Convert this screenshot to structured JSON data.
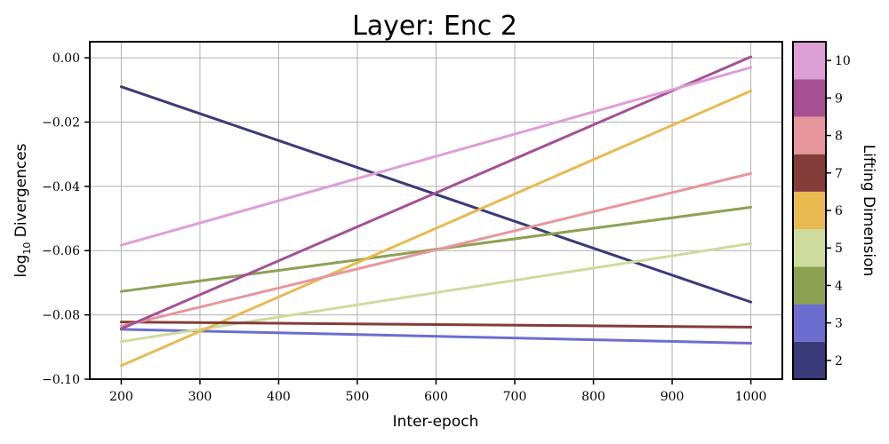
{
  "chart_data": {
    "type": "line",
    "title": "Layer: Enc 2",
    "xlabel": "Inter-epoch",
    "ylabel": "log10 Divergences",
    "ylabel_main": "log",
    "ylabel_sub": "10",
    "ylabel_rest": " Divergences",
    "xlim": [
      160,
      1040
    ],
    "ylim": [
      -0.1,
      0.005
    ],
    "grid": true,
    "x": [
      200,
      1000
    ],
    "xticks": [
      200,
      300,
      400,
      500,
      600,
      700,
      800,
      900,
      1000
    ],
    "xtick_labels": [
      "200",
      "300",
      "400",
      "500",
      "600",
      "700",
      "800",
      "900",
      "1000"
    ],
    "yticks": [
      0.0,
      -0.02,
      -0.04,
      -0.06,
      -0.08,
      -0.1
    ],
    "ytick_labels": [
      "0.00",
      "−0.02",
      "−0.04",
      "−0.06",
      "−0.08",
      "−0.10"
    ],
    "colorbar": {
      "label": "Lifting Dimension",
      "levels": [
        2,
        3,
        4,
        5,
        6,
        7,
        8,
        9,
        10
      ],
      "tick_labels": [
        "2",
        "3",
        "4",
        "5",
        "6",
        "7",
        "8",
        "9",
        "10"
      ],
      "colors": [
        "#393b79",
        "#6b6ecf",
        "#8ca252",
        "#cedb9c",
        "#e7ba52",
        "#843c39",
        "#e7969c",
        "#a55194",
        "#de9ed6"
      ]
    },
    "series": [
      {
        "dimension": 2,
        "color": "#393b79",
        "values": [
          -0.009,
          -0.076
        ]
      },
      {
        "dimension": 3,
        "color": "#6b6ecf",
        "values": [
          -0.0845,
          -0.0888
        ]
      },
      {
        "dimension": 4,
        "color": "#8ca252",
        "values": [
          -0.0727,
          -0.0465
        ]
      },
      {
        "dimension": 5,
        "color": "#cedb9c",
        "values": [
          -0.0883,
          -0.0578
        ]
      },
      {
        "dimension": 6,
        "color": "#e7ba52",
        "values": [
          -0.0958,
          -0.0103
        ]
      },
      {
        "dimension": 7,
        "color": "#843c39",
        "values": [
          -0.0822,
          -0.0838
        ]
      },
      {
        "dimension": 8,
        "color": "#e7969c",
        "values": [
          -0.0835,
          -0.036
        ]
      },
      {
        "dimension": 9,
        "color": "#a55194",
        "values": [
          -0.0843,
          0.0003
        ]
      },
      {
        "dimension": 10,
        "color": "#de9ed6",
        "values": [
          -0.0583,
          -0.003
        ]
      }
    ]
  }
}
